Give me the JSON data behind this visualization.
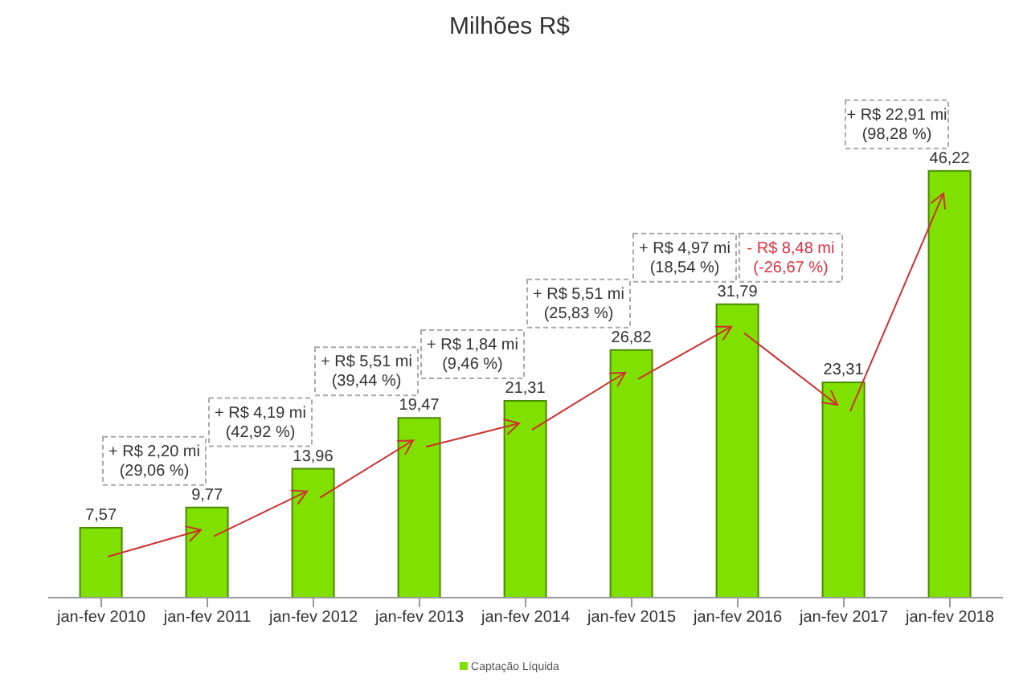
{
  "chart_data": {
    "type": "bar",
    "title": "Milhões R$",
    "categories": [
      "jan-fev 2010",
      "jan-fev 2011",
      "jan-fev 2012",
      "jan-fev 2013",
      "jan-fev 2014",
      "jan-fev 2015",
      "jan-fev 2016",
      "jan-fev 2017",
      "jan-fev 2018"
    ],
    "series": [
      {
        "name": "Captação Líquida",
        "color": "#80e000",
        "values": [
          7.57,
          9.77,
          13.96,
          19.47,
          21.31,
          26.82,
          31.79,
          23.31,
          46.22
        ],
        "value_labels": [
          "7,57",
          "9,77",
          "13,96",
          "19,47",
          "21,31",
          "26,82",
          "31,79",
          "23,31",
          "46,22"
        ]
      }
    ],
    "legend": "bottom",
    "annotations": [
      "+ R$ 2,20  mi\n(29,06 %)",
      "+ R$ 4,19  mi\n(42,92 %)",
      "+ R$ 5,51  mi\n(39,44 %)",
      "+ R$ 1,84  mi\n(9,46 %)",
      "+ R$ 5,51  mi\n(25,83 %)",
      "+ R$ 4,97  mi\n(18,54 %)",
      "- R$ 8,48  mi\n(-26,67 %)",
      "+ R$ 22,91  mi\n(98,28 %)"
    ]
  }
}
